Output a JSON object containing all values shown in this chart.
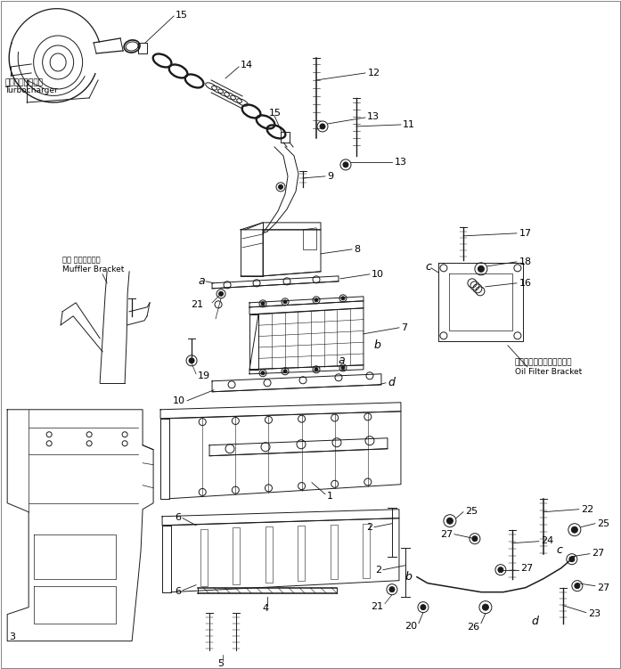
{
  "bg_color": "#ffffff",
  "fig_width": 6.97,
  "fig_height": 7.51,
  "dpi": 100,
  "lc": "#1a1a1a",
  "tc": "#000000",
  "lw": 0.7,
  "labels": {
    "turbocharger_jp": "ターボチャージャ",
    "turbocharger_en": "Turbocharger",
    "muffler_bracket_jp": "マフ ラブラケット",
    "muffler_bracket_en": "Muffler Bracket",
    "oil_filter_bracket_jp": "オイルフィルタブラケット",
    "oil_filter_bracket_en": "Oil Filter Bracket"
  }
}
